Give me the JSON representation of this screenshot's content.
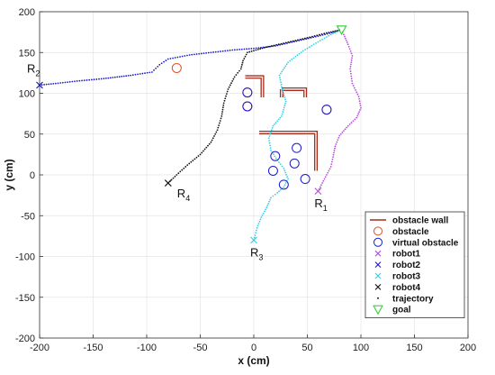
{
  "chart_data": {
    "type": "scatter",
    "xlabel": "x (cm)",
    "ylabel": "y (cm)",
    "xlim": [
      -200,
      200
    ],
    "ylim": [
      -200,
      200
    ],
    "xticks": [
      -200,
      -150,
      -100,
      -50,
      0,
      50,
      100,
      150,
      200
    ],
    "yticks": [
      -200,
      -150,
      -100,
      -50,
      0,
      50,
      100,
      150,
      200
    ],
    "grid": true,
    "legend_position": "bottom-right",
    "legend": [
      {
        "label": "obstacle wall",
        "marker": "wall",
        "color": "#a52a1a"
      },
      {
        "label": "obstacle",
        "marker": "circle",
        "color": "#d9542b"
      },
      {
        "label": "virtual obstacle",
        "marker": "circle",
        "color": "#1a1ad0"
      },
      {
        "label": "robot1",
        "marker": "x",
        "color": "#b44fd8"
      },
      {
        "label": "robot2",
        "marker": "x",
        "color": "#1a1ad0"
      },
      {
        "label": "robot3",
        "marker": "x",
        "color": "#30d0e8"
      },
      {
        "label": "robot4",
        "marker": "x",
        "color": "#111111"
      },
      {
        "label": "trajectory",
        "marker": "dot",
        "color": "#111111"
      },
      {
        "label": "goal",
        "marker": "triangle",
        "color": "#3ad13a"
      }
    ],
    "goal": {
      "x": 82,
      "y": 178
    },
    "robots": [
      {
        "label": "R",
        "sub": "1",
        "start": {
          "x": 60,
          "y": -20
        },
        "color": "#b44fd8",
        "path": [
          [
            60,
            -20
          ],
          [
            64,
            -10
          ],
          [
            68,
            0
          ],
          [
            72,
            10
          ],
          [
            74,
            22
          ],
          [
            76,
            35
          ],
          [
            80,
            48
          ],
          [
            88,
            60
          ],
          [
            96,
            70
          ],
          [
            100,
            82
          ],
          [
            98,
            96
          ],
          [
            92,
            112
          ],
          [
            90,
            130
          ],
          [
            92,
            146
          ],
          [
            88,
            160
          ],
          [
            84,
            172
          ],
          [
            82,
            178
          ]
        ]
      },
      {
        "label": "R",
        "sub": "2",
        "start": {
          "x": -200,
          "y": 110
        },
        "color": "#1a1ad0",
        "path": [
          [
            -200,
            110
          ],
          [
            -185,
            112
          ],
          [
            -165,
            115
          ],
          [
            -140,
            118
          ],
          [
            -115,
            122
          ],
          [
            -95,
            126
          ],
          [
            -88,
            135
          ],
          [
            -80,
            142
          ],
          [
            -60,
            147
          ],
          [
            -40,
            150
          ],
          [
            -20,
            153
          ],
          [
            0,
            155
          ],
          [
            20,
            158
          ],
          [
            40,
            164
          ],
          [
            60,
            170
          ],
          [
            75,
            175
          ],
          [
            82,
            178
          ]
        ]
      },
      {
        "label": "R",
        "sub": "3",
        "start": {
          "x": 0,
          "y": -80
        },
        "color": "#30d0e8",
        "path": [
          [
            0,
            -80
          ],
          [
            3,
            -65
          ],
          [
            7,
            -52
          ],
          [
            12,
            -40
          ],
          [
            16,
            -28
          ],
          [
            22,
            -22
          ],
          [
            28,
            -15
          ],
          [
            32,
            -5
          ],
          [
            28,
            8
          ],
          [
            22,
            18
          ],
          [
            16,
            30
          ],
          [
            14,
            45
          ],
          [
            18,
            60
          ],
          [
            26,
            72
          ],
          [
            30,
            90
          ],
          [
            26,
            108
          ],
          [
            24,
            122
          ],
          [
            32,
            138
          ],
          [
            46,
            152
          ],
          [
            60,
            163
          ],
          [
            72,
            172
          ],
          [
            82,
            178
          ]
        ]
      },
      {
        "label": "R",
        "sub": "4",
        "start": {
          "x": -80,
          "y": -10
        },
        "color": "#111111",
        "path": [
          [
            -80,
            -10
          ],
          [
            -72,
            0
          ],
          [
            -62,
            12
          ],
          [
            -50,
            25
          ],
          [
            -40,
            40
          ],
          [
            -34,
            55
          ],
          [
            -30,
            72
          ],
          [
            -28,
            88
          ],
          [
            -24,
            105
          ],
          [
            -18,
            120
          ],
          [
            -12,
            130
          ],
          [
            -10,
            140
          ],
          [
            -6,
            150
          ],
          [
            10,
            156
          ],
          [
            30,
            162
          ],
          [
            50,
            168
          ],
          [
            68,
            174
          ],
          [
            82,
            178
          ]
        ]
      }
    ],
    "walls": [
      [
        [
          -8,
          120
        ],
        [
          8,
          120
        ],
        [
          8,
          95
        ]
      ],
      [
        [
          26,
          105
        ],
        [
          26,
          95
        ]
      ],
      [
        [
          26,
          105
        ],
        [
          48,
          105
        ],
        [
          48,
          95
        ]
      ],
      [
        [
          5,
          52
        ],
        [
          58,
          52
        ],
        [
          58,
          5
        ]
      ]
    ],
    "obstacles": [
      {
        "x": -72,
        "y": 131
      },
      {
        "x": -6,
        "y": 101
      },
      {
        "x": -6,
        "y": 84
      },
      {
        "x": 68,
        "y": 80
      }
    ],
    "virtual_obstacles": [
      {
        "x": -6,
        "y": 101
      },
      {
        "x": -6,
        "y": 84
      },
      {
        "x": 20,
        "y": 23
      },
      {
        "x": 40,
        "y": 33
      },
      {
        "x": 18,
        "y": 5
      },
      {
        "x": 38,
        "y": 14
      },
      {
        "x": 28,
        "y": -12
      },
      {
        "x": 48,
        "y": -5
      },
      {
        "x": 68,
        "y": 80
      }
    ]
  }
}
